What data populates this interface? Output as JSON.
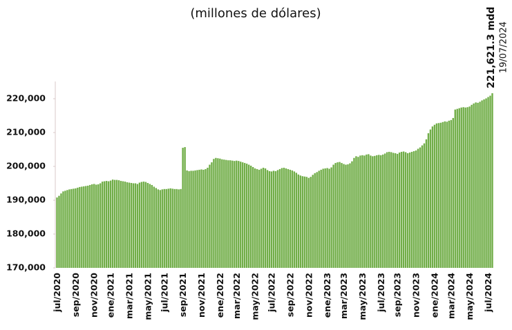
{
  "chart_data": {
    "type": "bar",
    "title": "(millones de dólares)",
    "annotations": [
      {
        "text": "221,621.3 mdd"
      },
      {
        "text": "19/07/2024"
      }
    ],
    "color": "#70ad47",
    "ylim": [
      170000,
      225000
    ],
    "yticks": [
      {
        "value": 170000,
        "label": "170,000"
      },
      {
        "value": 180000,
        "label": "180,000"
      },
      {
        "value": 190000,
        "label": "190,000"
      },
      {
        "value": 200000,
        "label": "200,000"
      },
      {
        "value": 210000,
        "label": "210,000"
      },
      {
        "value": 220000,
        "label": "220,000"
      }
    ],
    "categories": [
      "jul/2020",
      null,
      null,
      null,
      null,
      null,
      null,
      null,
      null,
      "sep/2020",
      null,
      null,
      null,
      null,
      null,
      null,
      null,
      null,
      "nov/2020",
      null,
      null,
      null,
      null,
      null,
      null,
      null,
      "ene/2021",
      null,
      null,
      null,
      null,
      null,
      null,
      null,
      null,
      "mar/2021",
      null,
      null,
      null,
      null,
      null,
      null,
      null,
      null,
      "may/2021",
      null,
      null,
      null,
      null,
      null,
      null,
      null,
      "jul/2021",
      null,
      null,
      null,
      null,
      null,
      null,
      null,
      null,
      "sep/2021",
      null,
      null,
      null,
      null,
      null,
      null,
      null,
      null,
      "nov/2021",
      null,
      null,
      null,
      null,
      null,
      null,
      null,
      null,
      "ene/2022",
      null,
      null,
      null,
      null,
      null,
      null,
      null,
      "mar/2022",
      null,
      null,
      null,
      null,
      null,
      null,
      null,
      null,
      "may/2022",
      null,
      null,
      null,
      null,
      null,
      null,
      null,
      "jul/2022",
      null,
      null,
      null,
      null,
      null,
      null,
      null,
      null,
      "sep/2022",
      null,
      null,
      null,
      null,
      null,
      null,
      null,
      null,
      "nov/2022",
      null,
      null,
      null,
      null,
      null,
      null,
      null,
      null,
      "ene/2023",
      null,
      null,
      null,
      null,
      null,
      null,
      null,
      "mar/2023",
      null,
      null,
      null,
      null,
      null,
      null,
      null,
      null,
      "may/2023",
      null,
      null,
      null,
      null,
      null,
      null,
      null,
      null,
      "jul/2023",
      null,
      null,
      null,
      null,
      null,
      null,
      null,
      "sep/2023",
      null,
      null,
      null,
      null,
      null,
      null,
      null,
      null,
      "nov/2023",
      null,
      null,
      null,
      null,
      null,
      null,
      null,
      null,
      "ene/2024",
      null,
      null,
      null,
      null,
      null,
      null,
      null,
      "mar/2024",
      null,
      null,
      null,
      null,
      null,
      null,
      null,
      null,
      "may/2024",
      null,
      null,
      null,
      null,
      null,
      null,
      null,
      null,
      "jul/2024",
      null,
      null
    ],
    "values": [
      190800,
      191300,
      192000,
      192600,
      192800,
      193000,
      193200,
      193300,
      193400,
      193500,
      193700,
      193900,
      194000,
      194100,
      194200,
      194300,
      194500,
      194700,
      194800,
      194600,
      194700,
      195000,
      195500,
      195600,
      195700,
      195600,
      195800,
      196100,
      196000,
      196000,
      195900,
      195700,
      195600,
      195500,
      195300,
      195200,
      195100,
      195000,
      195000,
      194800,
      195200,
      195400,
      195500,
      195400,
      195100,
      194800,
      194500,
      194000,
      193600,
      193200,
      193000,
      193200,
      193300,
      193300,
      193400,
      193500,
      193400,
      193300,
      193300,
      193200,
      193300,
      205500,
      205700,
      198800,
      198600,
      198700,
      198700,
      198800,
      198900,
      199000,
      199100,
      199000,
      199200,
      199600,
      200500,
      201200,
      202200,
      202500,
      202400,
      202300,
      202100,
      202000,
      201900,
      201800,
      201800,
      201700,
      201600,
      201700,
      201600,
      201400,
      201200,
      201000,
      200800,
      200500,
      200200,
      199800,
      199400,
      199200,
      199000,
      199300,
      199600,
      199400,
      198900,
      198600,
      198500,
      198700,
      198600,
      198900,
      199200,
      199500,
      199600,
      199400,
      199200,
      199000,
      198800,
      198500,
      198100,
      197600,
      197300,
      197100,
      197000,
      196900,
      196600,
      196900,
      197500,
      198000,
      198300,
      198700,
      199000,
      199300,
      199400,
      199500,
      199300,
      199700,
      200500,
      201000,
      201200,
      201300,
      201000,
      200700,
      200500,
      200600,
      200900,
      201500,
      202500,
      203000,
      202800,
      203200,
      203300,
      203200,
      203500,
      203600,
      203200,
      203000,
      203100,
      203300,
      203400,
      203300,
      203500,
      203800,
      204200,
      204300,
      204200,
      204000,
      203900,
      203700,
      204100,
      204300,
      204400,
      204200,
      203900,
      204100,
      204300,
      204500,
      204700,
      205200,
      205600,
      206200,
      206800,
      208000,
      209800,
      210900,
      211800,
      212300,
      212700,
      212800,
      212900,
      213100,
      213300,
      213200,
      213500,
      213700,
      214300,
      216800,
      217000,
      217200,
      217400,
      217500,
      217400,
      217500,
      217700,
      218200,
      218600,
      218900,
      218800,
      219100,
      219500,
      219800,
      220100,
      220500,
      220900,
      221621.3
    ]
  }
}
